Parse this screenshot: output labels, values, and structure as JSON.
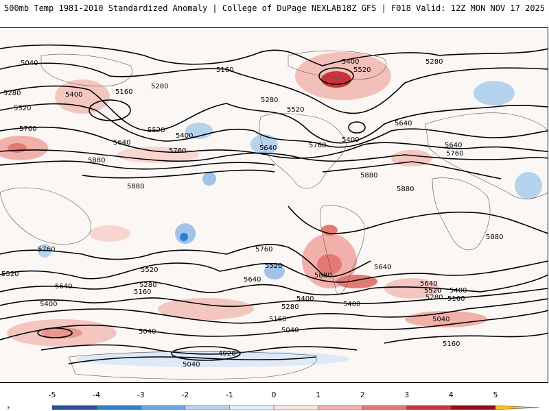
{
  "header": {
    "left_title": "500mb Temp 1981-2010 Standardized Anomaly | College of DuPage NEXLAB",
    "right_title": "18Z GFS | F018 Valid: 12Z MON NOV 17 2025"
  },
  "colorbar": {
    "ticks": [
      "-5",
      "-4",
      "-3",
      "-2",
      "-1",
      "0",
      "1",
      "2",
      "3",
      "4",
      "5"
    ],
    "colors": [
      "#7a4fa8",
      "#2a4f8f",
      "#2f7fc8",
      "#6aa6dc",
      "#b6d3ee",
      "#e3eef8",
      "#fbe3e0",
      "#f1b1aa",
      "#e27a73",
      "#c9333a",
      "#8f0d1a",
      "#f0c020"
    ]
  },
  "contour_labels": [
    "5040",
    "5160",
    "5280",
    "5400",
    "5520",
    "5640",
    "5760",
    "5880",
    "4920"
  ],
  "labels": {
    "l01": "5040",
    "l02": "5160",
    "l03": "5280",
    "l04": "5160",
    "l05": "5280",
    "l06": "5400",
    "l07": "5520",
    "l08": "5400",
    "l09": "5520",
    "l10": "5760",
    "l11": "5280",
    "l12": "5520",
    "l13": "5640",
    "l14": "5400",
    "l15": "5760",
    "l16": "5280",
    "l17": "5520",
    "l18": "5640",
    "l19": "5760",
    "l20": "5400",
    "l21": "5640",
    "l22": "5880",
    "l23": "5880",
    "l24": "5880",
    "l25": "5880",
    "l26": "5640",
    "l27": "5760",
    "l28": "5880",
    "l29": "5760",
    "l30": "5520",
    "l31": "5280",
    "l32": "5160",
    "l33": "5640",
    "l34": "5400",
    "l35": "5520",
    "l36": "5640",
    "l37": "5760",
    "l38": "5520",
    "l39": "5640",
    "l40": "5400",
    "l41": "5520",
    "l42": "5880",
    "l43": "5400",
    "l44": "5280",
    "l45": "5160",
    "l46": "5640",
    "l47": "5520",
    "l48": "5400",
    "l49": "5280",
    "l50": "5160",
    "l51": "5040",
    "l52": "5040",
    "l53": "5160",
    "l54": "5040",
    "l55": "4920",
    "l56": "5040"
  }
}
